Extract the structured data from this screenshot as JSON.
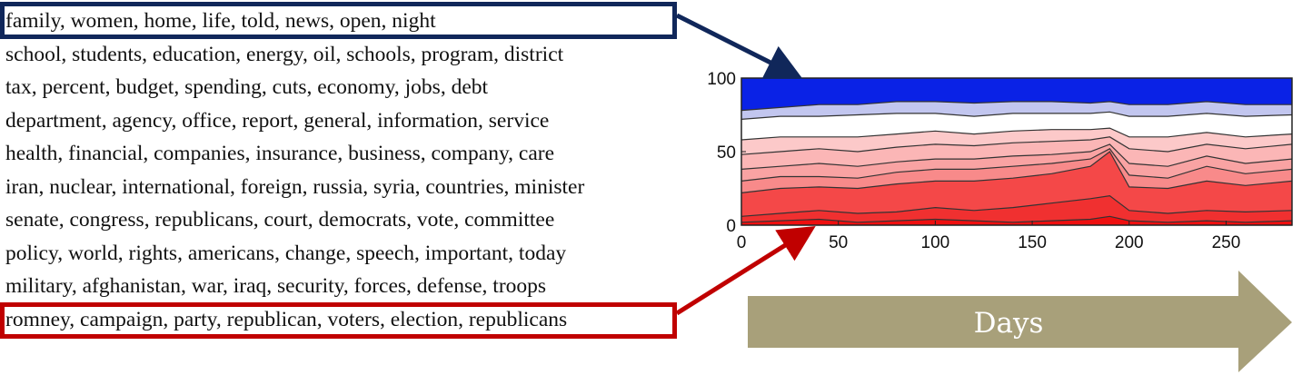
{
  "topics": [
    {
      "label": "family, women, home, life, told, news, open, night"
    },
    {
      "label": "school, students, education, energy, oil, schools, program, district"
    },
    {
      "label": "tax, percent, budget, spending, cuts, economy, jobs, debt"
    },
    {
      "label": "department, agency, office, report, general, information, service"
    },
    {
      "label": "health, financial, companies, insurance, business, company, care"
    },
    {
      "label": "iran, nuclear, international, foreign, russia, syria, countries, minister"
    },
    {
      "label": "senate, congress, republicans, court, democrats, vote, committee"
    },
    {
      "label": "policy, world, rights, americans, change, speech, important, today"
    },
    {
      "label": "military, afghanistan, war, iraq, security, forces, defense, troops"
    },
    {
      "label": "romney, campaign, party, republican, voters, election, republicans"
    }
  ],
  "highlight_colors": {
    "top": "#10275a",
    "bottom": "#c00000"
  },
  "arrow": {
    "label": "Days",
    "color": "#a8a07a"
  },
  "chart_data": {
    "type": "area",
    "stacked": true,
    "x_range": [
      0,
      284
    ],
    "ylim": [
      0,
      100
    ],
    "xticks": [
      0,
      50,
      100,
      150,
      200,
      250
    ],
    "yticks": [
      0,
      50,
      100
    ],
    "layer_colors": [
      "#ee0f0f",
      "#f03030",
      "#f44848",
      "#f88a8a",
      "#f9a3a3",
      "#fbb6b6",
      "#fcc9c9",
      "#ffffff",
      "#c2c6ef",
      "#0a22e6"
    ],
    "boundaries": [
      {
        "x": [
          0,
          20,
          40,
          60,
          80,
          100,
          120,
          140,
          160,
          180,
          190,
          200,
          220,
          240,
          260,
          284
        ],
        "y": [
          2,
          3,
          4,
          2,
          3,
          4,
          3,
          2,
          3,
          4,
          6,
          3,
          2,
          3,
          2,
          3
        ]
      },
      {
        "x": [
          0,
          20,
          40,
          60,
          80,
          100,
          120,
          140,
          160,
          180,
          190,
          200,
          220,
          240,
          260,
          284
        ],
        "y": [
          6,
          8,
          10,
          8,
          9,
          12,
          10,
          12,
          15,
          18,
          20,
          10,
          8,
          10,
          9,
          10
        ]
      },
      {
        "x": [
          0,
          20,
          40,
          60,
          80,
          100,
          120,
          140,
          160,
          180,
          190,
          200,
          220,
          240,
          260,
          284
        ],
        "y": [
          22,
          25,
          26,
          25,
          28,
          30,
          30,
          32,
          35,
          40,
          50,
          26,
          25,
          30,
          27,
          30
        ]
      },
      {
        "x": [
          0,
          20,
          40,
          60,
          80,
          100,
          120,
          140,
          160,
          180,
          190,
          200,
          220,
          240,
          260,
          284
        ],
        "y": [
          30,
          33,
          33,
          32,
          36,
          38,
          38,
          40,
          42,
          45,
          52,
          34,
          32,
          40,
          35,
          38
        ]
      },
      {
        "x": [
          0,
          20,
          40,
          60,
          80,
          100,
          120,
          140,
          160,
          180,
          190,
          200,
          220,
          240,
          260,
          284
        ],
        "y": [
          38,
          40,
          42,
          40,
          43,
          45,
          45,
          47,
          48,
          50,
          55,
          42,
          40,
          47,
          42,
          45
        ]
      },
      {
        "x": [
          0,
          20,
          40,
          60,
          80,
          100,
          120,
          140,
          160,
          180,
          190,
          200,
          220,
          240,
          260,
          284
        ],
        "y": [
          48,
          50,
          52,
          50,
          53,
          55,
          54,
          56,
          57,
          58,
          60,
          52,
          50,
          55,
          52,
          55
        ]
      },
      {
        "x": [
          0,
          20,
          40,
          60,
          80,
          100,
          120,
          140,
          160,
          180,
          190,
          200,
          220,
          240,
          260,
          284
        ],
        "y": [
          58,
          60,
          60,
          60,
          62,
          64,
          62,
          64,
          65,
          65,
          66,
          60,
          60,
          63,
          60,
          62
        ]
      },
      {
        "x": [
          0,
          20,
          40,
          60,
          80,
          100,
          120,
          140,
          160,
          180,
          190,
          200,
          220,
          240,
          260,
          284
        ],
        "y": [
          72,
          74,
          74,
          75,
          76,
          76,
          74,
          76,
          76,
          76,
          77,
          74,
          74,
          76,
          74,
          75
        ]
      },
      {
        "x": [
          0,
          20,
          40,
          60,
          80,
          100,
          120,
          140,
          160,
          180,
          190,
          200,
          220,
          240,
          260,
          284
        ],
        "y": [
          78,
          80,
          82,
          82,
          84,
          84,
          83,
          84,
          84,
          83,
          84,
          82,
          82,
          84,
          82,
          82
        ]
      }
    ]
  }
}
